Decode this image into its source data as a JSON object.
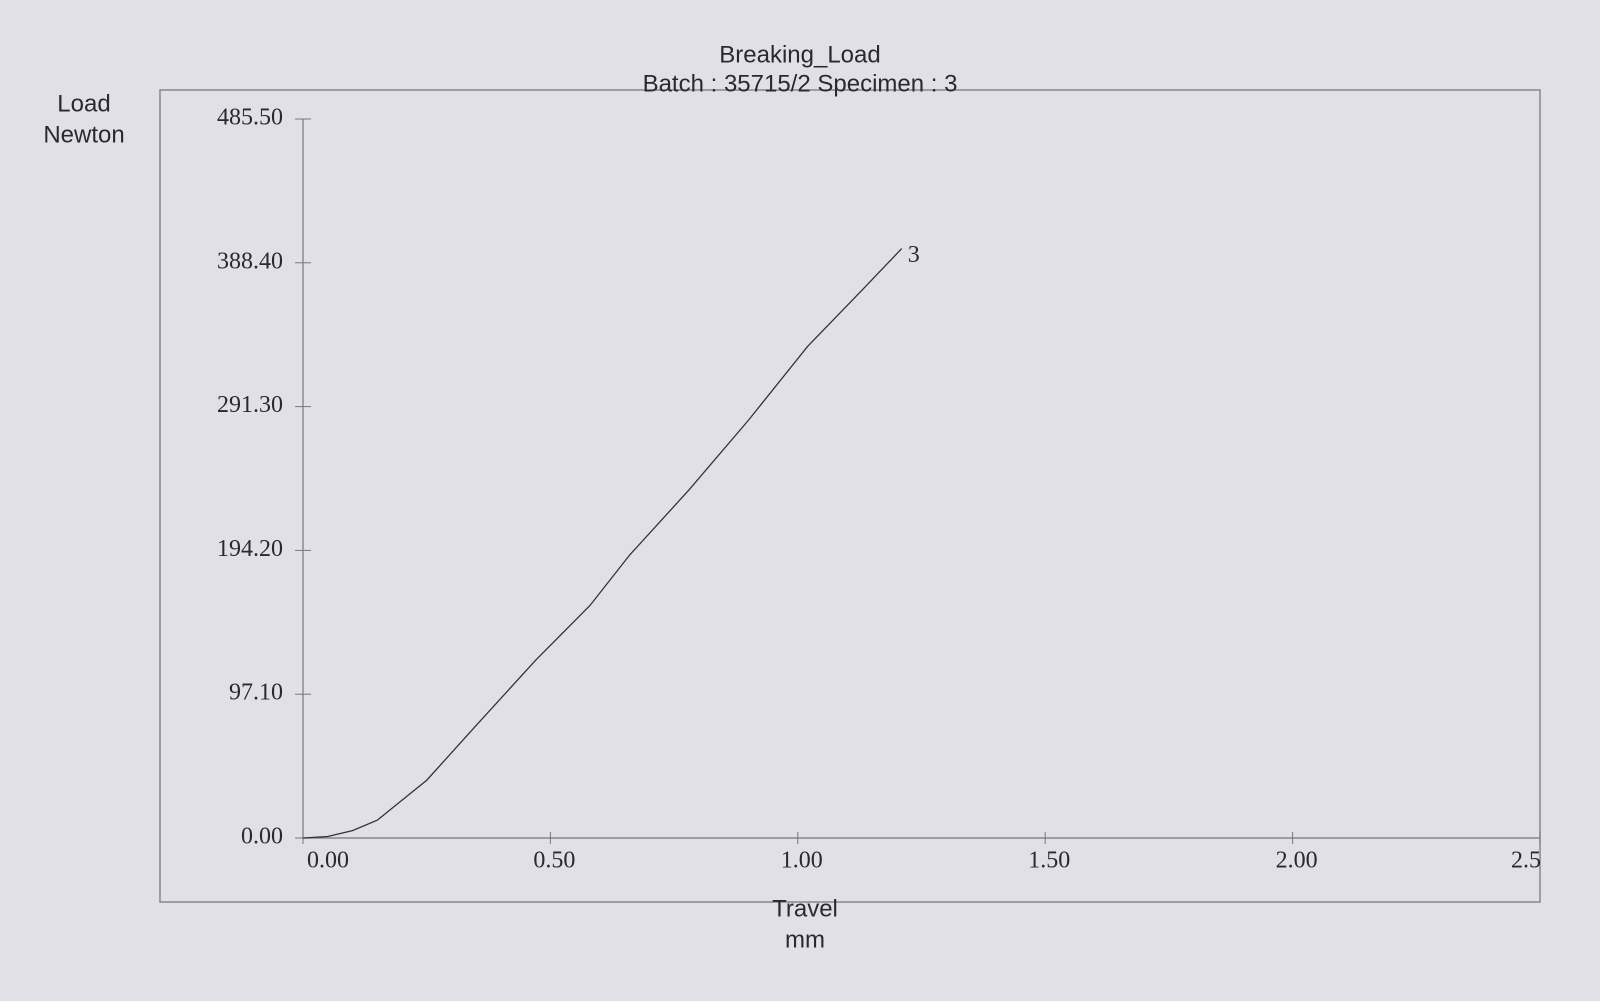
{
  "chart_data": {
    "type": "line",
    "title": "Breaking_Load",
    "subtitle": "Batch : 35715/2 Specimen : 3",
    "y_label": "Load",
    "y_unit": "Newton",
    "x_label": "Travel",
    "x_unit": "mm",
    "x": [
      0,
      0.05,
      0.1,
      0.15,
      0.25,
      0.35,
      0.47,
      0.58,
      0.66,
      0.78,
      0.9,
      1.02,
      1.13,
      1.21
    ],
    "series": [
      {
        "name": "3",
        "color": "#333333",
        "values": [
          0,
          1,
          5,
          12,
          39,
          76,
          120,
          157,
          191,
          235,
          282,
          332,
          370,
          398
        ]
      }
    ],
    "xlim": [
      0,
      2.5
    ],
    "ylim": [
      0,
      485.5
    ],
    "xticks": [
      {
        "value": 0,
        "label": "0.00"
      },
      {
        "value": 0.5,
        "label": "0.50"
      },
      {
        "value": 1,
        "label": "1.00"
      },
      {
        "value": 1.5,
        "label": "1.50"
      },
      {
        "value": 2,
        "label": "2.00"
      },
      2.5
    ],
    "yticks": [
      {
        "value": 0,
        "label": "0.00"
      },
      {
        "value": 97.1,
        "label": "97.10"
      },
      {
        "value": 194.2,
        "label": "194.20"
      },
      {
        "value": 291.3,
        "label": "291.30"
      },
      {
        "value": 388.4,
        "label": "388.40"
      },
      {
        "value": 485.5,
        "label": "485.50"
      }
    ],
    "grid": false
  }
}
